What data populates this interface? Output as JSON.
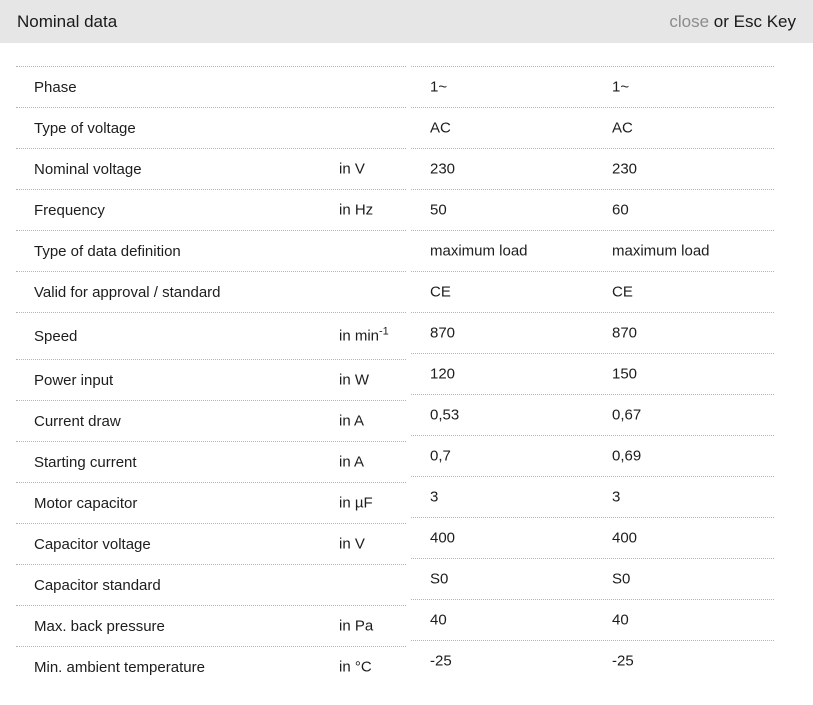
{
  "header": {
    "title": "Nominal data",
    "close_label": "close",
    "close_suffix": " or Esc Key"
  },
  "colors": {
    "header_bg": "#e6e6e6",
    "close_gray": "#8c8c8c",
    "text": "#1d1d1d",
    "divider": "#b4b4b4"
  },
  "rows": [
    {
      "label": "Phase",
      "unit": "",
      "v1": "1~",
      "v2": "1~"
    },
    {
      "label": "Type of voltage",
      "unit": "",
      "v1": "AC",
      "v2": "AC"
    },
    {
      "label": "Nominal voltage",
      "unit": "in V",
      "v1": "230",
      "v2": "230"
    },
    {
      "label": "Frequency",
      "unit": "in Hz",
      "v1": "50",
      "v2": "60"
    },
    {
      "label": "Type of data definition",
      "unit": "",
      "v1": "maximum load",
      "v2": "maximum load"
    },
    {
      "label": "Valid for approval / standard",
      "unit": "",
      "v1": "CE",
      "v2": "CE"
    },
    {
      "label": "Speed",
      "unit": "in min",
      "unit_sup": "-1",
      "v1": "870",
      "v2": "870"
    },
    {
      "label": "Power input",
      "unit": "in W",
      "v1": "120",
      "v2": "150"
    },
    {
      "label": "Current draw",
      "unit": "in A",
      "v1": "0,53",
      "v2": "0,67"
    },
    {
      "label": "Starting current",
      "unit": "in A",
      "v1": "0,7",
      "v2": "0,69"
    },
    {
      "label": "Motor capacitor",
      "unit": "in µF",
      "v1": "3",
      "v2": "3"
    },
    {
      "label": "Capacitor voltage",
      "unit": "in V",
      "v1": "400",
      "v2": "400"
    },
    {
      "label": "Capacitor standard",
      "unit": "",
      "v1": "S0",
      "v2": "S0"
    },
    {
      "label": "Max. back pressure",
      "unit": "in Pa",
      "v1": "40",
      "v2": "40"
    },
    {
      "label": "Min. ambient temperature",
      "unit": "in °C",
      "v1": "-25",
      "v2": "-25"
    }
  ]
}
